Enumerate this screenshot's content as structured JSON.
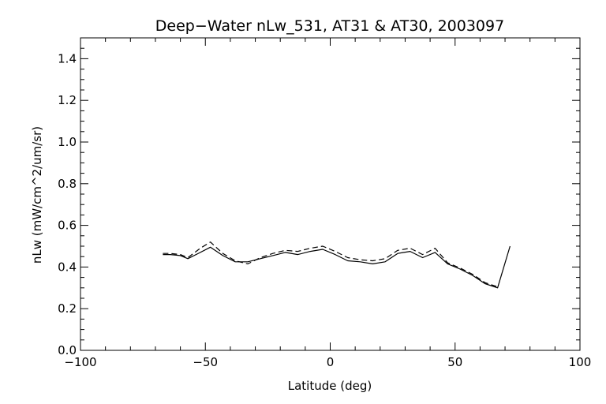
{
  "chart_data": {
    "type": "line",
    "title": "Deep−Water nLw_531, AT31 & AT30, 2003097",
    "xlabel": "Latitude (deg)",
    "ylabel": "nLw (mW/cm^2/um/sr)",
    "xlim": [
      -100,
      100
    ],
    "ylim": [
      0.0,
      1.5
    ],
    "x_ticks": [
      -100,
      -50,
      0,
      50,
      100
    ],
    "x_tick_labels": [
      "−100",
      "−50",
      "0",
      "50",
      "100"
    ],
    "y_ticks": [
      0.0,
      0.2,
      0.4,
      0.6,
      0.8,
      1.0,
      1.2,
      1.4
    ],
    "y_tick_labels": [
      "0.0",
      "0.2",
      "0.4",
      "0.6",
      "0.8",
      "1.0",
      "1.2",
      "1.4"
    ],
    "grid": false,
    "legend": "none",
    "series": [
      {
        "style": "solid",
        "color": "#000000",
        "x": [
          -67,
          -64,
          -60,
          -57,
          -52,
          -48,
          -43,
          -38,
          -33,
          -28,
          -23,
          -18,
          -13,
          -8,
          -3,
          2,
          7,
          12,
          17,
          22,
          27,
          32,
          37,
          42,
          47,
          52,
          57,
          62,
          67,
          72
        ],
        "y": [
          0.46,
          0.46,
          0.455,
          0.44,
          0.47,
          0.495,
          0.455,
          0.425,
          0.425,
          0.44,
          0.455,
          0.47,
          0.46,
          0.475,
          0.485,
          0.46,
          0.43,
          0.425,
          0.415,
          0.425,
          0.465,
          0.475,
          0.445,
          0.47,
          0.415,
          0.39,
          0.36,
          0.32,
          0.3,
          0.5
        ]
      },
      {
        "style": "dashed",
        "color": "#000000",
        "x": [
          -67,
          -64,
          -60,
          -57,
          -52,
          -48,
          -43,
          -38,
          -33,
          -28,
          -23,
          -18,
          -13,
          -8,
          -3,
          2,
          7,
          12,
          17,
          22,
          27,
          32,
          37,
          42,
          47,
          52,
          57,
          62,
          67
        ],
        "y": [
          0.465,
          0.465,
          0.46,
          0.445,
          0.49,
          0.52,
          0.465,
          0.43,
          0.415,
          0.445,
          0.465,
          0.48,
          0.475,
          0.49,
          0.5,
          0.475,
          0.445,
          0.435,
          0.43,
          0.44,
          0.48,
          0.49,
          0.46,
          0.49,
          0.42,
          0.395,
          0.365,
          0.325,
          0.305
        ]
      }
    ]
  }
}
